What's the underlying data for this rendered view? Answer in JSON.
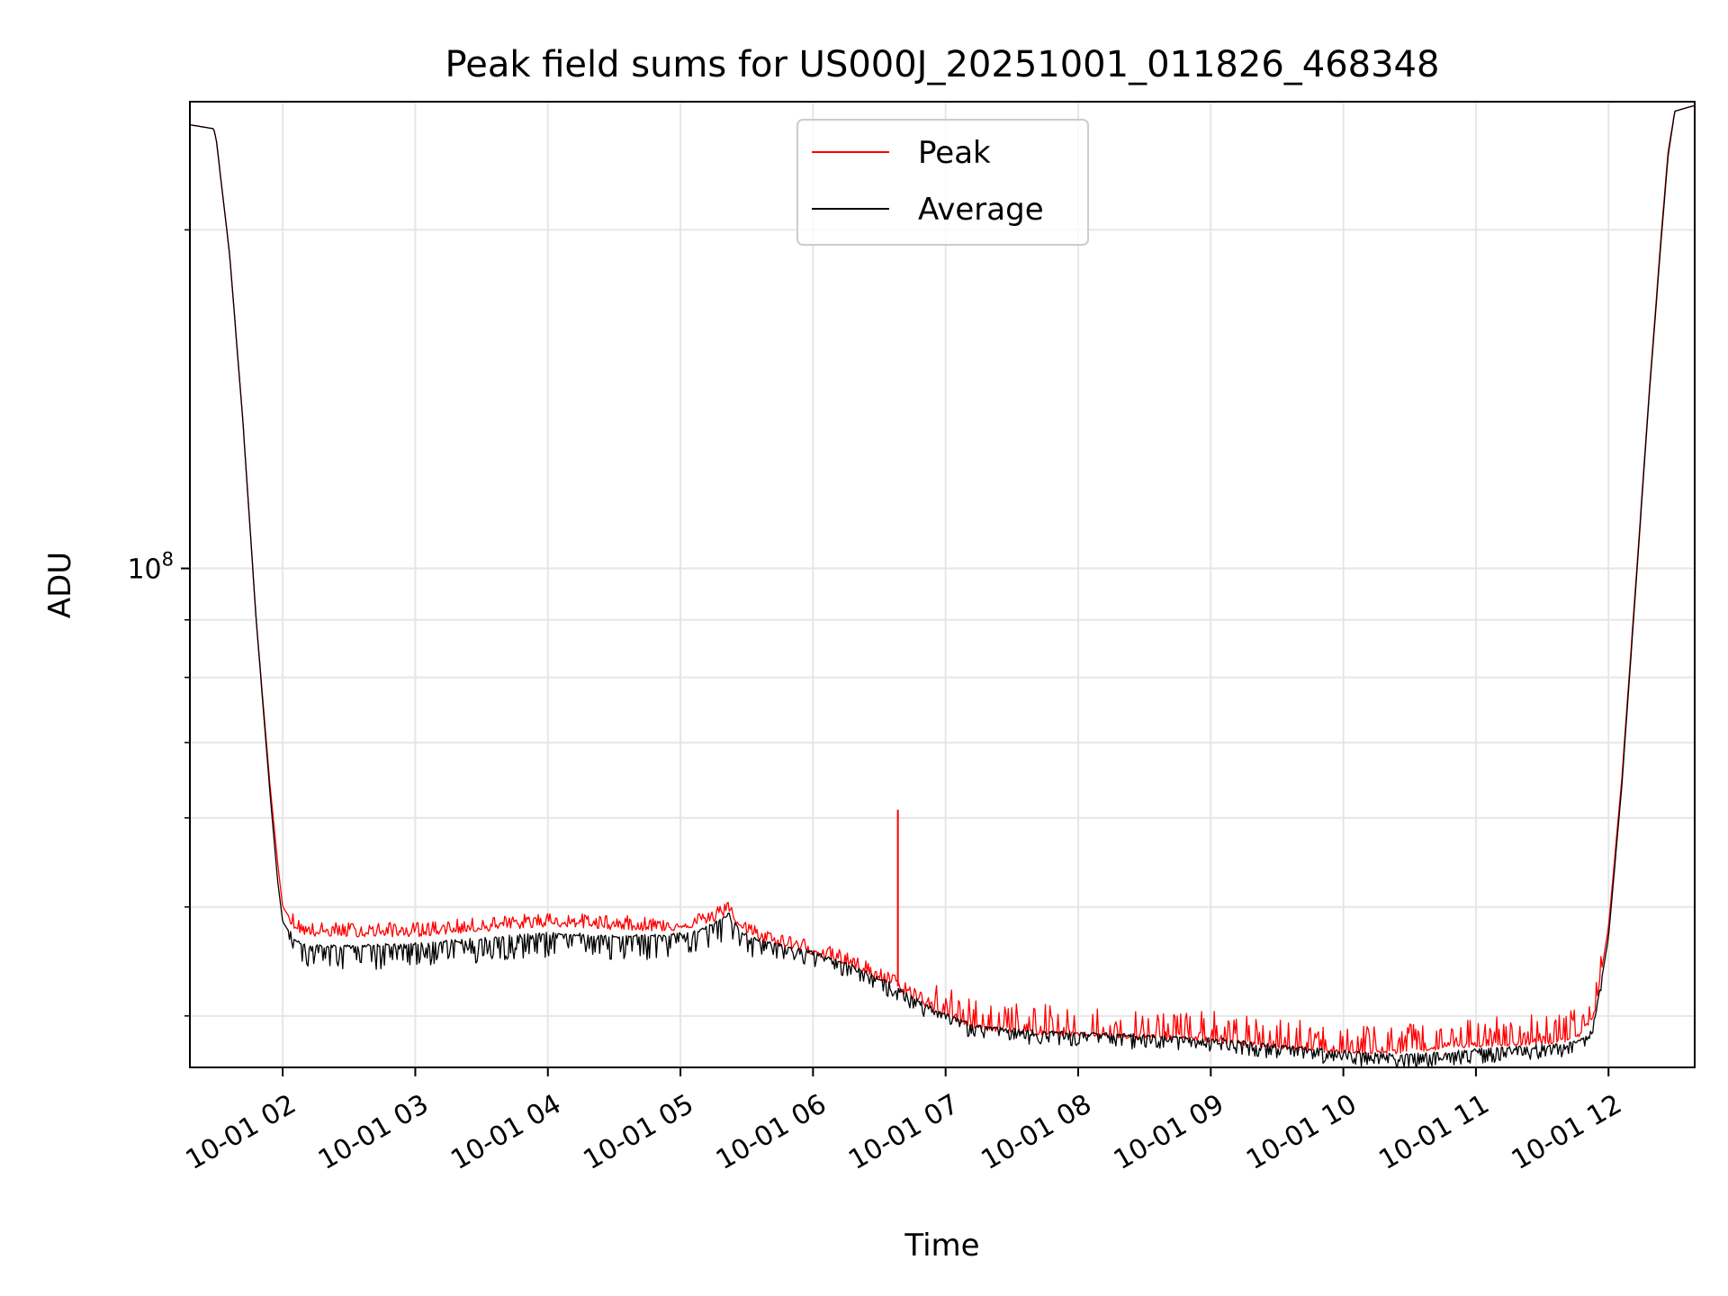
{
  "chart_data": {
    "type": "line",
    "title": "Peak field sums for US000J_20251001_011826_468348",
    "xlabel": "Time",
    "ylabel": "ADU",
    "y_scale": "log",
    "ylim": [
      36000000,
      260000000
    ],
    "xlim": [
      1.3,
      12.65
    ],
    "x_unit": "hours since 10-01 00:00",
    "grid": true,
    "legend_position": "upper center",
    "x_ticks": [
      {
        "value": 2,
        "label": "10-01 02"
      },
      {
        "value": 3,
        "label": "10-01 03"
      },
      {
        "value": 4,
        "label": "10-01 04"
      },
      {
        "value": 5,
        "label": "10-01 05"
      },
      {
        "value": 6,
        "label": "10-01 06"
      },
      {
        "value": 7,
        "label": "10-01 07"
      },
      {
        "value": 8,
        "label": "10-01 08"
      },
      {
        "value": 9,
        "label": "10-01 09"
      },
      {
        "value": 10,
        "label": "10-01 10"
      },
      {
        "value": 11,
        "label": "10-01 11"
      },
      {
        "value": 12,
        "label": "10-01 12"
      }
    ],
    "y_major_ticks": [
      {
        "value": 100000000,
        "base": "10",
        "exp": "8"
      }
    ],
    "y_minor_ticks": [
      40000000,
      50000000,
      60000000,
      70000000,
      80000000,
      90000000,
      200000000
    ],
    "series": [
      {
        "name": "Peak",
        "color": "#ff0000",
        "x": [
          1.3,
          1.48,
          1.5,
          1.6,
          1.7,
          1.8,
          1.9,
          1.96,
          2.0,
          2.1,
          2.2,
          2.5,
          3.0,
          3.5,
          4.0,
          4.5,
          4.9,
          5.15,
          5.3,
          5.37,
          5.45,
          5.6,
          6.0,
          6.3,
          6.6,
          6.9,
          7.2,
          7.6,
          8.0,
          8.5,
          9.0,
          9.5,
          10.0,
          10.3,
          10.5,
          10.8,
          11.0,
          11.5,
          11.7,
          11.8,
          11.9,
          12.0,
          12.1,
          12.2,
          12.3,
          12.4,
          12.45,
          12.5,
          12.65
        ],
        "y": [
          248000000,
          246000000,
          240000000,
          190000000,
          135000000,
          90000000,
          65000000,
          55000000,
          50000000,
          48000000,
          47500000,
          47500000,
          47500000,
          48000000,
          48500000,
          48200000,
          48000000,
          48500000,
          49200000,
          50000000,
          48000000,
          47000000,
          45800000,
          44500000,
          42800000,
          40800000,
          39300000,
          38900000,
          38700000,
          38500000,
          38300000,
          37700000,
          37400000,
          37300000,
          37500000,
          37700000,
          37900000,
          38100000,
          38300000,
          38800000,
          40500000,
          48000000,
          65000000,
          95000000,
          140000000,
          200000000,
          235000000,
          255000000,
          258000000
        ]
      },
      {
        "name": "Average",
        "color": "#000000",
        "x": [
          1.3,
          1.48,
          1.5,
          1.6,
          1.7,
          1.8,
          1.9,
          1.96,
          2.0,
          2.1,
          2.2,
          2.5,
          3.0,
          3.5,
          4.0,
          4.5,
          4.9,
          5.15,
          5.3,
          5.37,
          5.45,
          5.6,
          6.0,
          6.3,
          6.6,
          6.9,
          7.2,
          7.6,
          8.0,
          8.5,
          9.0,
          9.5,
          10.0,
          10.3,
          10.5,
          10.8,
          11.0,
          11.5,
          11.7,
          11.8,
          11.9,
          12.0,
          12.1,
          12.2,
          12.3,
          12.4,
          12.45,
          12.5,
          12.65
        ],
        "y": [
          248000000,
          246000000,
          240000000,
          190000000,
          135000000,
          90000000,
          64000000,
          53000000,
          48500000,
          46500000,
          46000000,
          46000000,
          46200000,
          46700000,
          47200000,
          47000000,
          47000000,
          47500000,
          48500000,
          49200000,
          47300000,
          46500000,
          45400000,
          44200000,
          42500000,
          40500000,
          39100000,
          38700000,
          38500000,
          38300000,
          38100000,
          37500000,
          37100000,
          36900000,
          36800000,
          37000000,
          37200000,
          37500000,
          37700000,
          38000000,
          39800000,
          47000000,
          64000000,
          94000000,
          139000000,
          198000000,
          233000000,
          255000000,
          258000000
        ]
      }
    ],
    "spike": {
      "x": 6.64,
      "y": 61000000,
      "series": "Peak"
    }
  }
}
